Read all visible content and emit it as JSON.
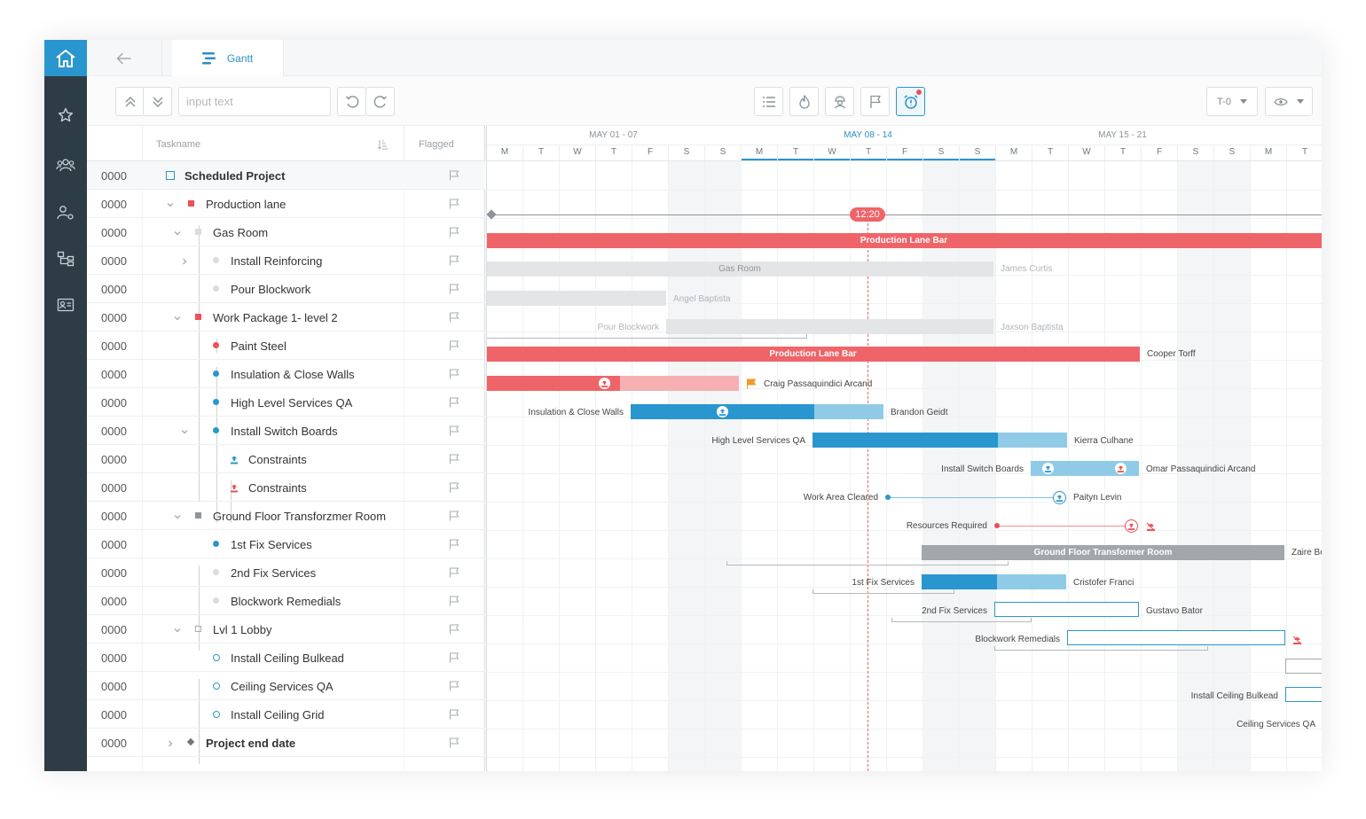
{
  "app": {
    "tab_label": "Gantt",
    "search_placeholder": "input text",
    "filter_label": "T-0"
  },
  "colors": {
    "accent": "#2a96cf",
    "sidebar": "#2e3d45",
    "red": "#ef6468",
    "red_light": "#f6b0b2",
    "blue": "#2a96cf",
    "blue_light": "#8fcbe6",
    "gray_bar": "#a1a7ab",
    "light_gray_bar": "#e4e5e6"
  },
  "grid": {
    "col_taskname": "Taskname",
    "col_flagged": "Flagged",
    "rows": [
      {
        "num": "0000",
        "name": "Scheduled Project"
      },
      {
        "num": "0000",
        "name": "Production lane"
      },
      {
        "num": "0000",
        "name": "Gas Room"
      },
      {
        "num": "0000",
        "name": "Install Reinforcing"
      },
      {
        "num": "0000",
        "name": "Pour Blockwork"
      },
      {
        "num": "0000",
        "name": "Work Package 1- level 2"
      },
      {
        "num": "0000",
        "name": "Paint Steel"
      },
      {
        "num": "0000",
        "name": "Insulation & Close Walls"
      },
      {
        "num": "0000",
        "name": "High Level Services QA"
      },
      {
        "num": "0000",
        "name": "Install Switch Boards"
      },
      {
        "num": "0000",
        "name": "Constraints"
      },
      {
        "num": "0000",
        "name": "Constraints"
      },
      {
        "num": "0000",
        "name": "Ground Floor Transforzmer Room"
      },
      {
        "num": "0000",
        "name": "1st Fix Services"
      },
      {
        "num": "0000",
        "name": "2nd Fix Services"
      },
      {
        "num": "0000",
        "name": "Blockwork Remedials"
      },
      {
        "num": "0000",
        "name": "Lvl 1 Lobby"
      },
      {
        "num": "0000",
        "name": "Install Ceiling Bulkead"
      },
      {
        "num": "0000",
        "name": "Ceiling Services QA"
      },
      {
        "num": "0000",
        "name": "Install Ceiling Grid"
      },
      {
        "num": "0000",
        "name": "Project end date"
      }
    ]
  },
  "timeline": {
    "weeks": [
      "MAY 01 - 07",
      "MAY 08 - 14",
      "MAY 15 - 21"
    ],
    "days": [
      "M",
      "T",
      "W",
      "T",
      "F",
      "S",
      "S",
      "M",
      "T",
      "W",
      "T",
      "F",
      "S",
      "S",
      "M",
      "T",
      "W",
      "T",
      "F",
      "S",
      "S",
      "M",
      "T"
    ],
    "today_label": "12:20"
  },
  "bars": {
    "production_lane": "Production Lane Bar",
    "gas_room": "Gas Room",
    "work_package": "Production Lane Bar",
    "ground_floor": "Ground Floor Transformer Room"
  },
  "labels": {
    "james": "James Curtis",
    "angel": "Angel Baptista",
    "pour_blockwork": "Pour Blockwork",
    "jaxson": "Jaxson Baptista",
    "cooper": "Cooper Torff",
    "craig": "Craig Passaquindici Arcand",
    "insulation": "Insulation & Close Walls",
    "brandon": "Brandon Geidt",
    "hlsqa": "High Level Services QA",
    "kierra": "Kierra Culhane",
    "switch_boards": "Install Switch Boards",
    "omar": "Omar Passaquindici Arcand",
    "work_area": "Work Area Cleared",
    "paityn": "Paityn Levin",
    "resources": "Resources Required",
    "zaire": "Zaire Bo",
    "first_fix": "1st Fix Services",
    "cristofer": "Cristofer Franci",
    "second_fix": "2nd Fix Services",
    "gustavo": "Gustavo Bator",
    "blockwork_rem": "Blockwork Remedials",
    "ceiling_bulkead": "Install Ceiling Bulkead",
    "ceiling_qa": "Ceiling Services QA"
  }
}
